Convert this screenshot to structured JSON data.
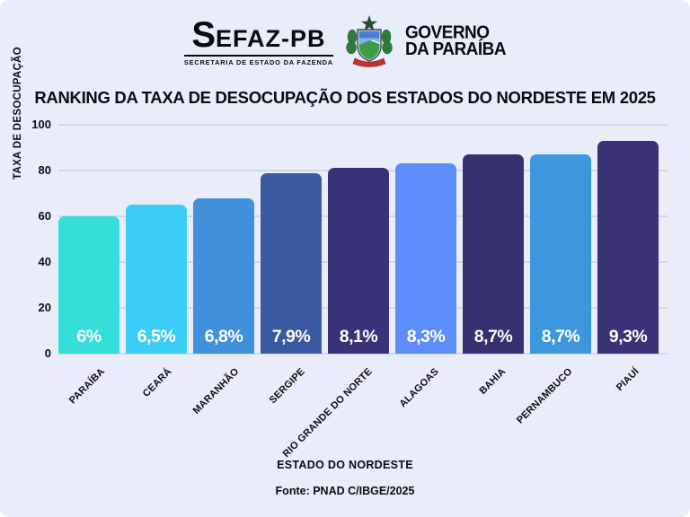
{
  "header": {
    "sefaz": {
      "initial": "S",
      "rest": "EFAZ-PB",
      "subtitle": "SECRETARIA DE ESTADO DA FAZENDA"
    },
    "crest_icon": "paraiba-coat-of-arms",
    "governo": {
      "line1": "GOVERNO",
      "line2": "DA PARAÍBA"
    }
  },
  "title": "RANKING DA TAXA DE DESOCUPAÇÃO DOS ESTADOS DO NORDESTE EM 2025",
  "chart_data": {
    "type": "bar",
    "title": "RANKING DA TAXA DE DESOCUPAÇÃO DOS ESTADOS DO NORDESTE EM 2025",
    "xlabel": "ESTADO DO NORDESTE",
    "ylabel": "TAXA DE DESOCUPAÇÃO",
    "categories": [
      "PARAÍBA",
      "CEARÁ",
      "MARANHÃO",
      "SERGIPE",
      "RIO GRANDE DO NORTE",
      "ALAGOAS",
      "BAHIA",
      "PERNAMBUCO",
      "PIAUÍ"
    ],
    "values_percent": [
      6,
      6.5,
      6.8,
      7.9,
      8.1,
      8.3,
      8.7,
      8.7,
      9.3
    ],
    "value_labels": [
      "6%",
      "6,5%",
      "6,8%",
      "7,9%",
      "8,1%",
      "8,3%",
      "8,7%",
      "8,7%",
      "9,3%"
    ],
    "bar_heights_on_axis": [
      60,
      65,
      68,
      79,
      81,
      83,
      87,
      87,
      93
    ],
    "bar_colors": [
      "#35DED9",
      "#3BCDF5",
      "#4190DB",
      "#3B59A1",
      "#3A3278",
      "#5C8DF8",
      "#373070",
      "#3D97DE",
      "#3A3176"
    ],
    "ylim": [
      0,
      100
    ],
    "yticks": [
      0,
      20,
      40,
      60,
      80,
      100
    ],
    "grid": true,
    "legend": "none",
    "value_label_color": "#FFFFFF",
    "background_color": "#E9EDF9",
    "gridline_color": "#D2D7E5"
  },
  "source": "Fonte: PNAD C/IBGE/2025"
}
